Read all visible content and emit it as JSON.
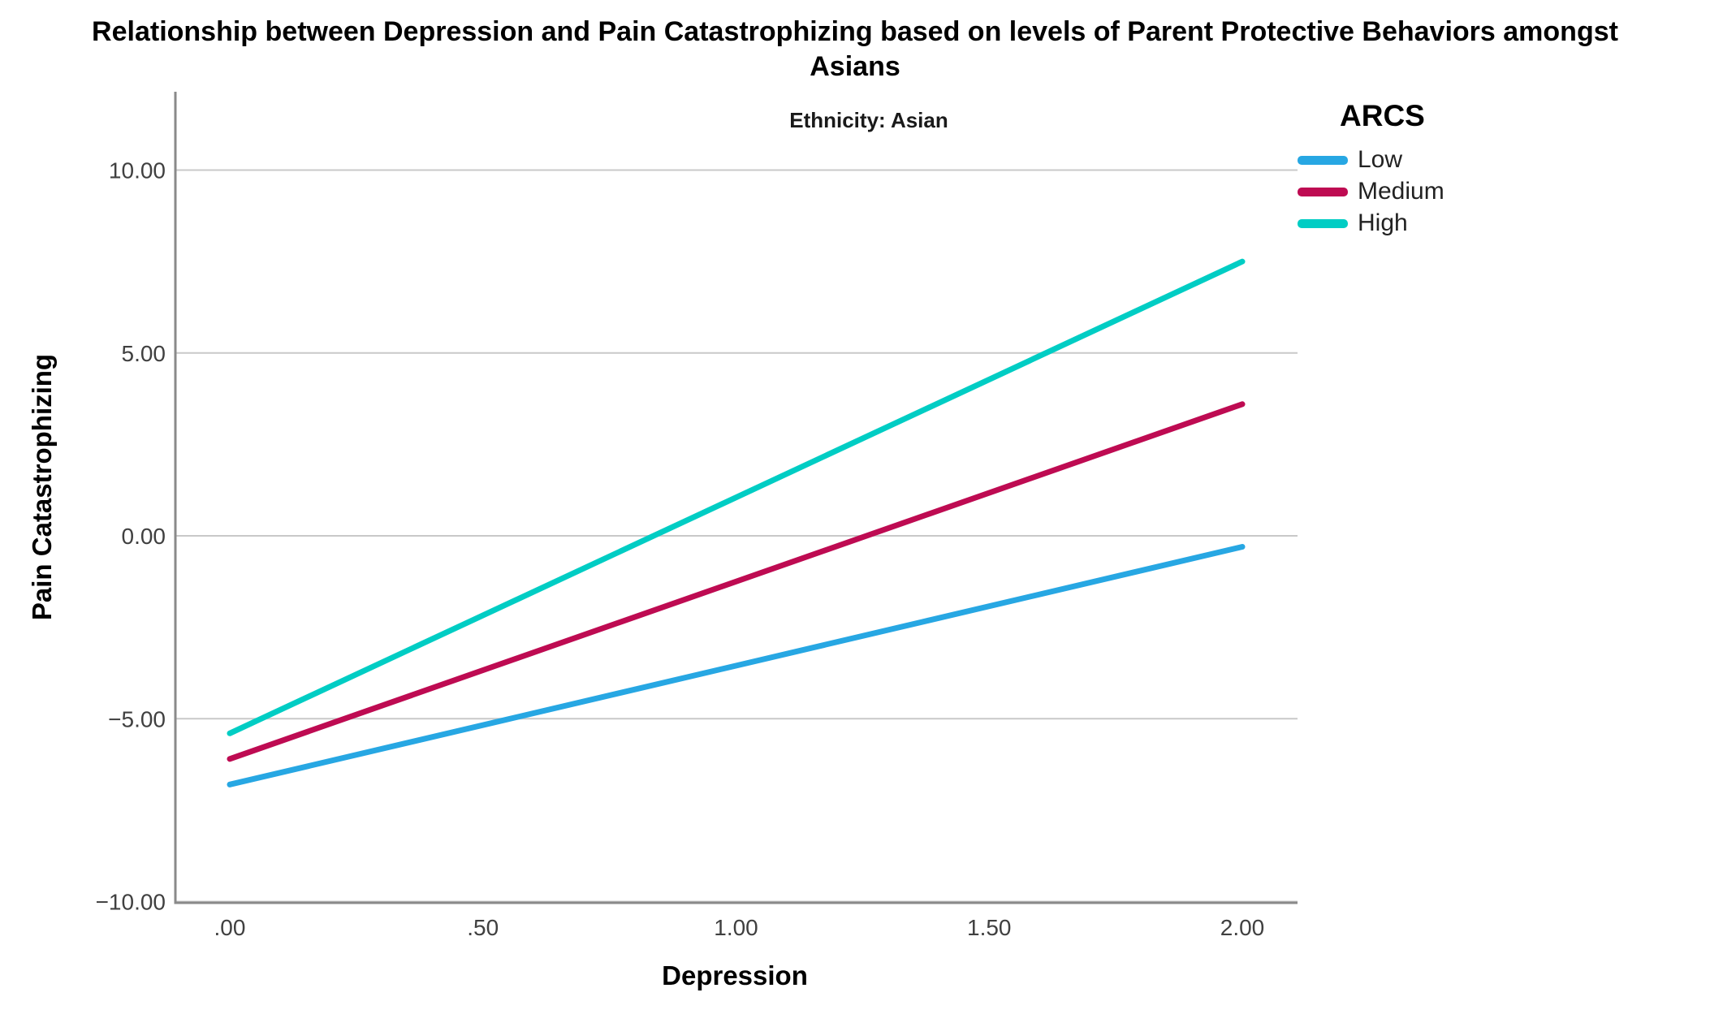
{
  "title_line1": "Relationship between Depression and Pain Catastrophizing based on levels of Parent Protective Behaviors amongst",
  "title_line2": "Asians",
  "chart_data": {
    "type": "line",
    "title": "Relationship between Depression and Pain Catastrophizing based on levels of Parent Protective Behaviors amongst Asians",
    "panel_label": "Ethnicity: Asian",
    "xlabel": "Depression",
    "ylabel": "Pain Catastrophizing",
    "x": [
      0.0,
      2.0
    ],
    "series": [
      {
        "name": "Low",
        "color": "#27A7E3",
        "values": [
          -6.8,
          -0.3
        ]
      },
      {
        "name": "Medium",
        "color": "#BE0B52",
        "values": [
          -6.1,
          3.6
        ]
      },
      {
        "name": "High",
        "color": "#00CDC4",
        "values": [
          -5.4,
          7.5
        ]
      }
    ],
    "legend_title": "ARCS",
    "legend_position": "top-right",
    "xticks": [
      {
        "value": 0.0,
        "label": ".00"
      },
      {
        "value": 0.5,
        "label": ".50"
      },
      {
        "value": 1.0,
        "label": "1.00"
      },
      {
        "value": 1.5,
        "label": "1.50"
      },
      {
        "value": 2.0,
        "label": "2.00"
      }
    ],
    "yticks": [
      {
        "value": 10,
        "label": "10.00"
      },
      {
        "value": 5,
        "label": "5.00"
      },
      {
        "value": 0,
        "label": "0.00"
      },
      {
        "value": -5,
        "label": "−5.00"
      },
      {
        "value": -10,
        "label": "−10.00"
      }
    ],
    "xlim": [
      -0.11,
      2.11
    ],
    "ylim": [
      -10,
      10
    ],
    "grid": "horizontal"
  },
  "colors": {
    "gridline": "#C9C9C9",
    "axis": "#8A8A8A",
    "tick_text": "#404040",
    "low": "#27A7E3",
    "medium": "#BE0B52",
    "high": "#00CDC4",
    "background": "#FFFFFF"
  }
}
